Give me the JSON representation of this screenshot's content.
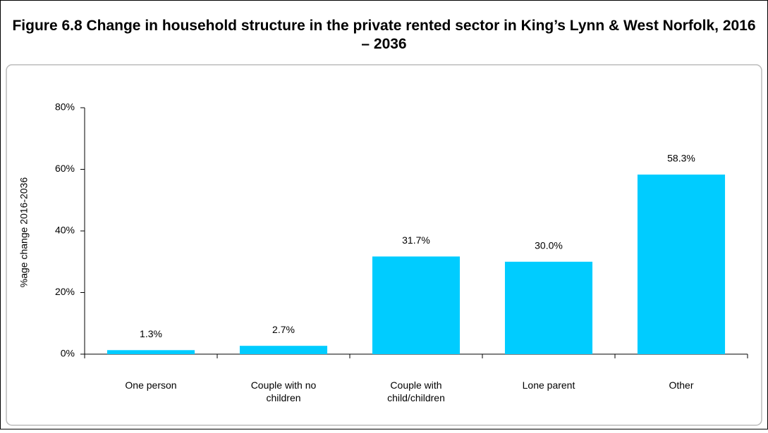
{
  "chart_data": {
    "type": "bar",
    "title": "Figure 6.8 Change in household structure in the private rented sector in King’s Lynn & West Norfolk, 2016 – 2036",
    "y_label": "%age change 2016-2036",
    "categories": [
      "One person",
      "Couple with no children",
      "Couple with child/children",
      "Lone parent",
      "Other"
    ],
    "values": [
      1.3,
      2.7,
      31.7,
      30.0,
      58.3
    ],
    "value_labels": [
      "1.3%",
      "2.7%",
      "31.7%",
      "30.0%",
      "58.3%"
    ],
    "color": "#00ccff",
    "ylim": [
      0,
      80
    ],
    "yticks": [
      {
        "value": 0,
        "label": "0%"
      },
      {
        "value": 20,
        "label": "20%"
      },
      {
        "value": 40,
        "label": "40%"
      },
      {
        "value": 60,
        "label": "60%"
      },
      {
        "value": 80,
        "label": "80%"
      }
    ],
    "grid": false
  }
}
